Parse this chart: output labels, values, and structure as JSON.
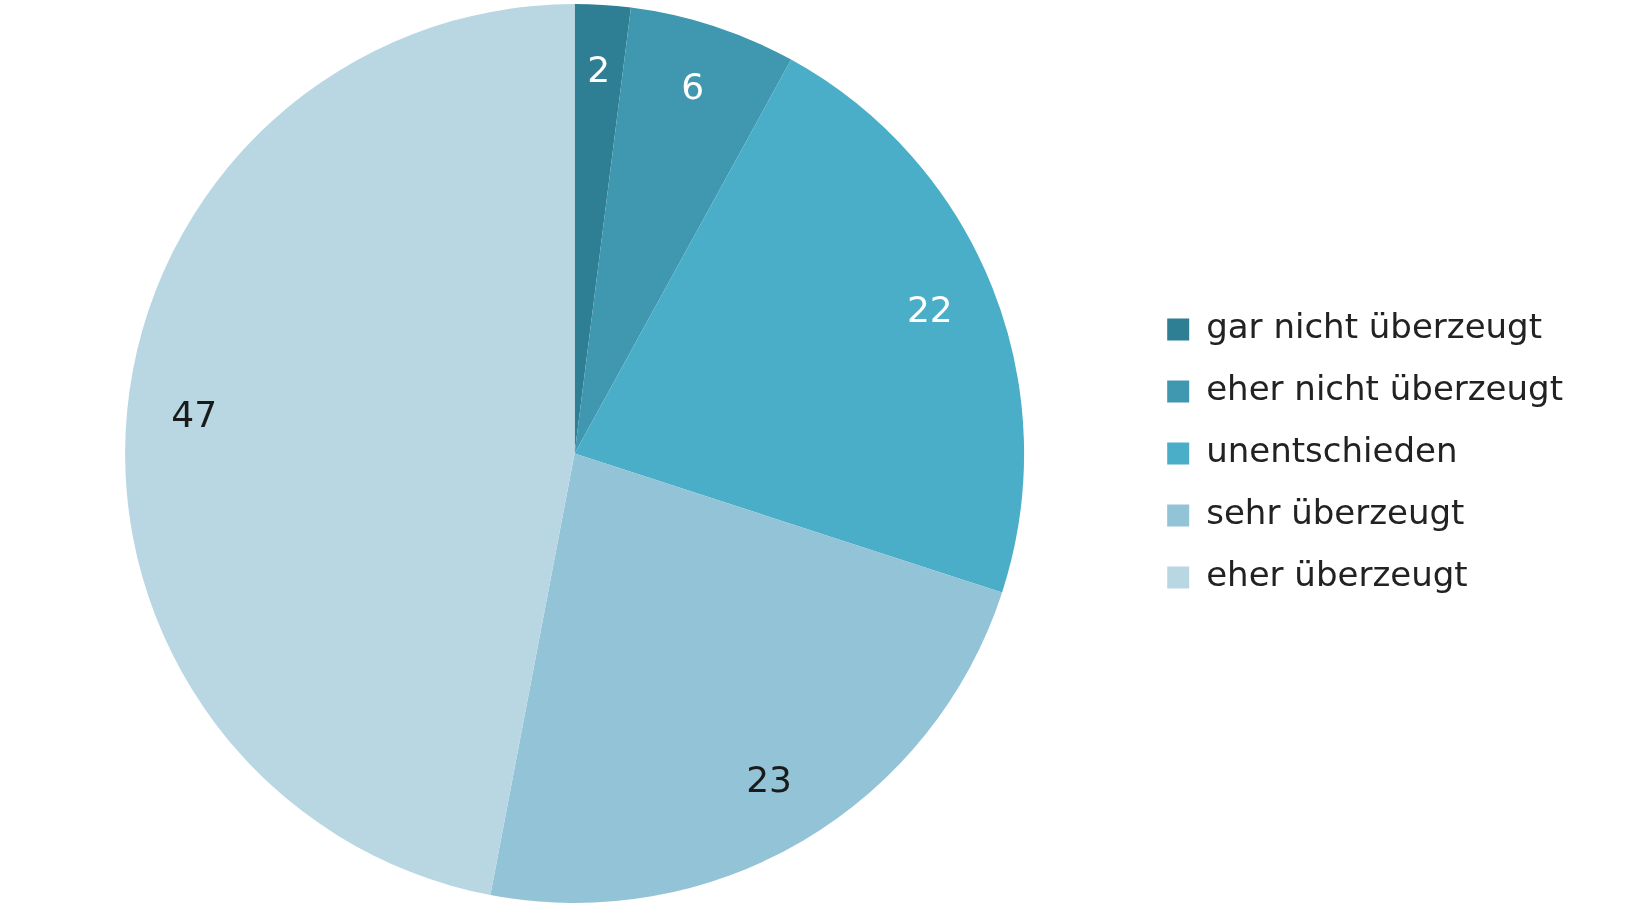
{
  "chart_data": {
    "type": "pie",
    "categories": [
      "gar nicht überzeugt",
      "eher nicht überzeugt",
      "unentschieden",
      "sehr überzeugt",
      "eher überzeugt"
    ],
    "values": [
      2,
      6,
      22,
      23,
      47
    ],
    "colors": [
      "#2f7f94",
      "#3f97b0",
      "#4aaec9",
      "#93c3d6",
      "#b8d7e3"
    ],
    "data_labels": true,
    "legend": "right"
  }
}
